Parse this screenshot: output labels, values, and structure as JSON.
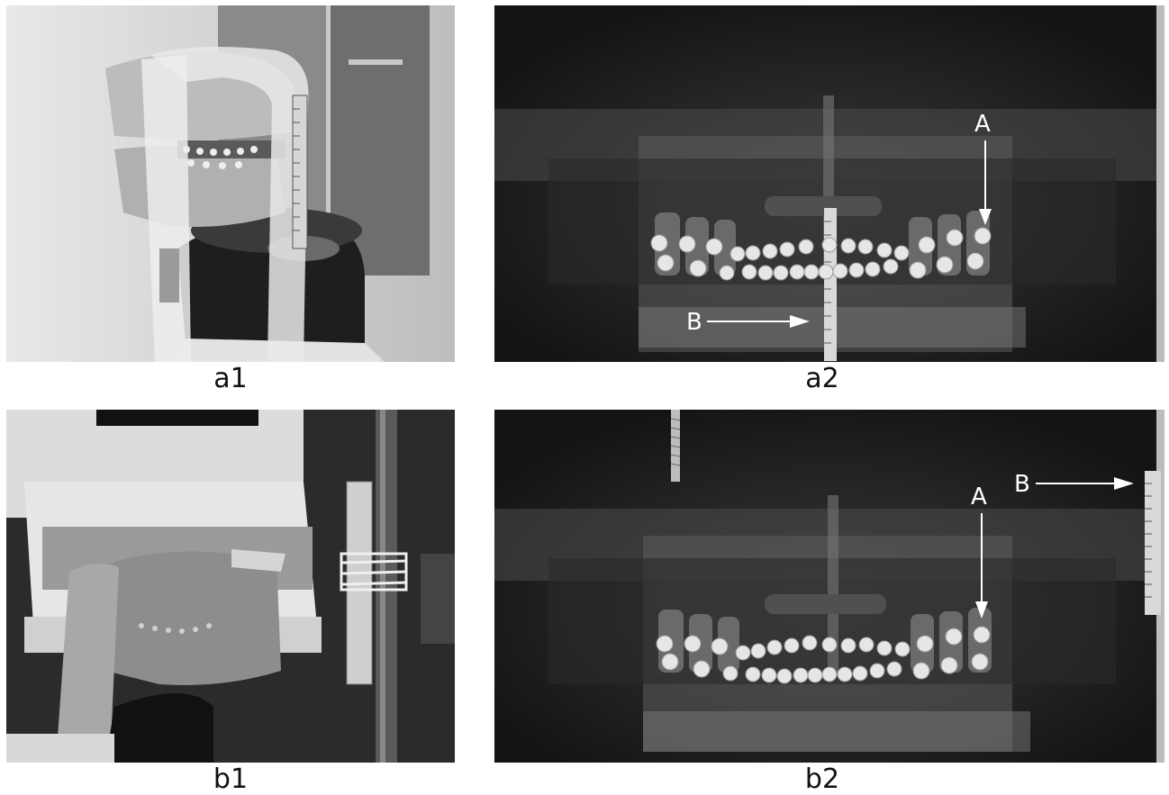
{
  "figure": {
    "panels": [
      {
        "caption": "a1",
        "kind": "photo",
        "subject": "dental model with ruler on scanner chin rest"
      },
      {
        "caption": "a2",
        "kind": "radiograph",
        "markers": [
          "A",
          "B"
        ]
      },
      {
        "caption": "b1",
        "kind": "photo",
        "subject": "dental model with ruler on vertical rod"
      },
      {
        "caption": "b2",
        "kind": "radiograph",
        "markers": [
          "A",
          "B"
        ]
      }
    ]
  },
  "colors": {
    "background": "#ffffff",
    "xray_dark": "#1c1c1c",
    "marker": "#ffffff",
    "caption": "#111111"
  }
}
